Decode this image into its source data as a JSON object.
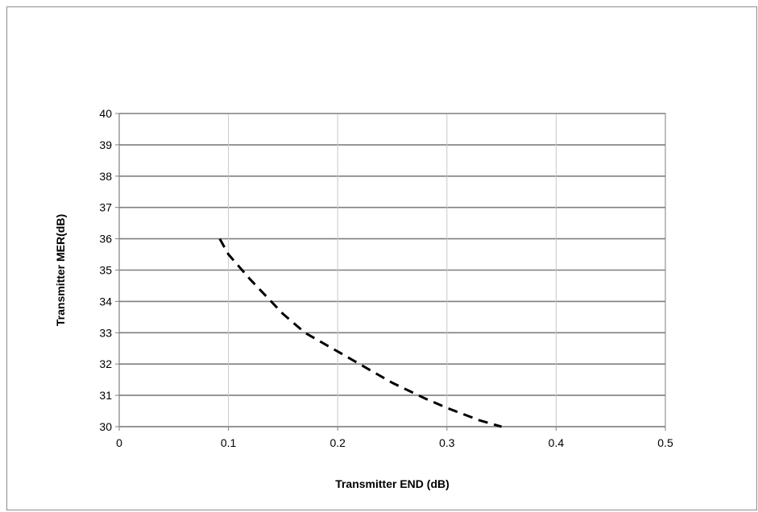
{
  "chart_data": {
    "type": "line",
    "title": "",
    "xlabel": "Transmitter END (dB)",
    "ylabel": "Transmitter MER(dB)",
    "xlim": [
      0,
      0.5
    ],
    "ylim": [
      30,
      40
    ],
    "x_ticks": [
      "0",
      "0.1",
      "0.2",
      "0.3",
      "0.4",
      "0.5"
    ],
    "y_ticks": [
      "30",
      "31",
      "32",
      "33",
      "34",
      "35",
      "36",
      "37",
      "38",
      "39",
      "40"
    ],
    "grid": true,
    "legend": "none",
    "series": [
      {
        "style": "dashed",
        "color": "#000000",
        "x": [
          0.092,
          0.1,
          0.12,
          0.15,
          0.17,
          0.2,
          0.23,
          0.25,
          0.28,
          0.3,
          0.33,
          0.35
        ],
        "y": [
          36.0,
          35.5,
          34.7,
          33.6,
          33.0,
          32.4,
          31.8,
          31.4,
          30.9,
          30.6,
          30.2,
          30.0
        ]
      }
    ]
  }
}
